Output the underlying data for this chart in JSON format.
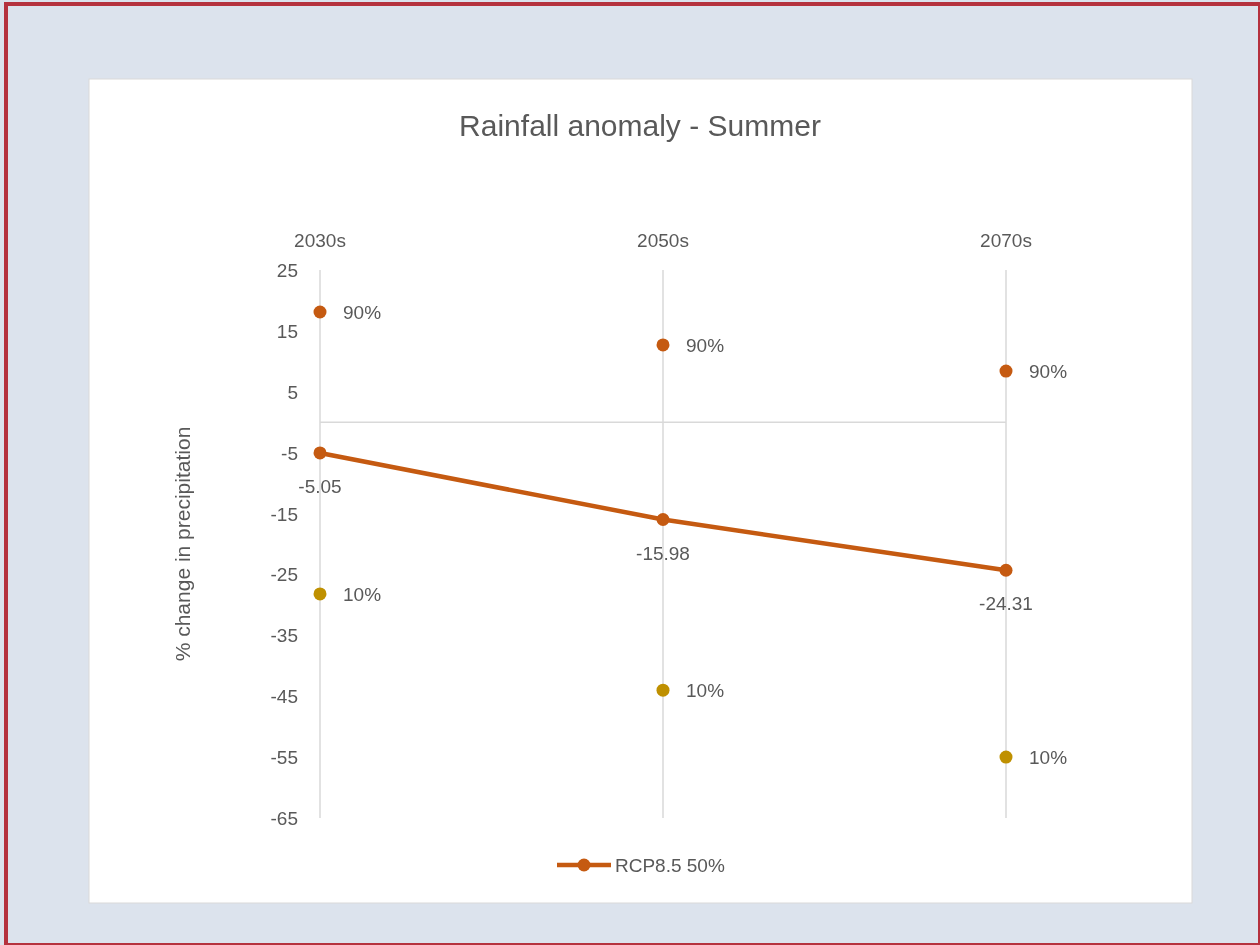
{
  "chart_data": {
    "type": "line",
    "title": "Rainfall anomaly - Summer",
    "ylabel": "% change in precipitation",
    "categories": [
      "2030s",
      "2050s",
      "2070s"
    ],
    "series": [
      {
        "name": "90%",
        "type": "scatter",
        "color": "#c55a11",
        "values": [
          18.1,
          12.7,
          8.4
        ]
      },
      {
        "name": "RCP8.5 50%",
        "color": "#c55a11",
        "values": [
          -5.05,
          -15.98,
          -24.31
        ],
        "value_labels": [
          "-5.05",
          "-15.98",
          "-24.31"
        ]
      },
      {
        "name": "10%",
        "type": "scatter",
        "color": "#bf9000",
        "values": [
          -28.2,
          -44,
          -55
        ]
      }
    ],
    "ylim": [
      -65,
      25
    ],
    "yticks": [
      -65,
      -55,
      -45,
      -35,
      -25,
      -15,
      -5,
      5,
      15,
      25
    ],
    "grid": "x",
    "legend": "bottom",
    "marker": "circle"
  }
}
